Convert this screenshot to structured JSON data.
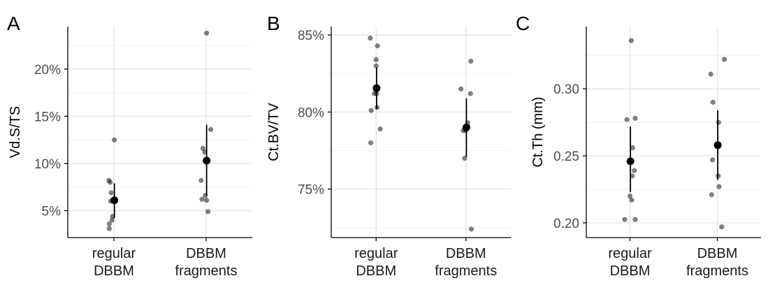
{
  "chart_data": [
    {
      "panel": "A",
      "type": "scatter",
      "ylabel": "Vd.S/TS",
      "categories": [
        "regular\nDBBM",
        "DBBM\nfragments"
      ],
      "ylim": [
        0.0215,
        0.245
      ],
      "yticks": [
        0.05,
        0.1,
        0.15,
        0.2
      ],
      "ytick_labels": [
        "5%",
        "10%",
        "15%",
        "20%"
      ],
      "ytick_minor": [
        0.075,
        0.125,
        0.175,
        0.225
      ],
      "points": [
        {
          "cat": 0,
          "jit": -0.1,
          "y": 0.031
        },
        {
          "cat": 0,
          "jit": -0.1,
          "y": 0.036
        },
        {
          "cat": 0,
          "jit": -0.04,
          "y": 0.04
        },
        {
          "cat": 0,
          "jit": -0.03,
          "y": 0.044
        },
        {
          "cat": 0,
          "jit": -0.07,
          "y": 0.06
        },
        {
          "cat": 0,
          "jit": -0.06,
          "y": 0.069
        },
        {
          "cat": 0,
          "jit": -0.08,
          "y": 0.08
        },
        {
          "cat": 0,
          "jit": -0.11,
          "y": 0.082
        },
        {
          "cat": 0,
          "jit": 0.01,
          "y": 0.125
        },
        {
          "cat": 1,
          "jit": 0.04,
          "y": 0.049
        },
        {
          "cat": 1,
          "jit": -0.09,
          "y": 0.062
        },
        {
          "cat": 1,
          "jit": 0.01,
          "y": 0.061
        },
        {
          "cat": 1,
          "jit": -0.02,
          "y": 0.066
        },
        {
          "cat": 1,
          "jit": -0.11,
          "y": 0.082
        },
        {
          "cat": 1,
          "jit": -0.03,
          "y": 0.112
        },
        {
          "cat": 1,
          "jit": -0.07,
          "y": 0.116
        },
        {
          "cat": 1,
          "jit": 0.1,
          "y": 0.136
        },
        {
          "cat": 1,
          "jit": 0.01,
          "y": 0.238
        }
      ],
      "summary": [
        {
          "cat": 0,
          "mean": 0.061,
          "low": 0.042,
          "high": 0.079
        },
        {
          "cat": 1,
          "mean": 0.103,
          "low": 0.066,
          "high": 0.141
        }
      ]
    },
    {
      "panel": "B",
      "type": "scatter",
      "ylabel": "Ct.BV/TV",
      "categories": [
        "regular\nDBBM",
        "DBBM\nfragments"
      ],
      "ylim": [
        0.7185,
        0.8555
      ],
      "yticks": [
        0.75,
        0.8,
        0.85
      ],
      "ytick_labels": [
        "75%",
        "80%",
        "85%"
      ],
      "ytick_minor": [
        0.725,
        0.775,
        0.825
      ],
      "points": [
        {
          "cat": 0,
          "jit": -0.12,
          "y": 0.78
        },
        {
          "cat": 0,
          "jit": 0.09,
          "y": 0.789
        },
        {
          "cat": 0,
          "jit": -0.11,
          "y": 0.801
        },
        {
          "cat": 0,
          "jit": 0.02,
          "y": 0.803
        },
        {
          "cat": 0,
          "jit": -0.04,
          "y": 0.812
        },
        {
          "cat": 0,
          "jit": 0.01,
          "y": 0.812
        },
        {
          "cat": 0,
          "jit": 0.0,
          "y": 0.83
        },
        {
          "cat": 0,
          "jit": 0.0,
          "y": 0.834
        },
        {
          "cat": 0,
          "jit": 0.03,
          "y": 0.843
        },
        {
          "cat": 0,
          "jit": -0.13,
          "y": 0.848
        },
        {
          "cat": 1,
          "jit": 0.12,
          "y": 0.724
        },
        {
          "cat": 1,
          "jit": -0.03,
          "y": 0.77
        },
        {
          "cat": 1,
          "jit": -0.06,
          "y": 0.788
        },
        {
          "cat": 1,
          "jit": -0.01,
          "y": 0.788
        },
        {
          "cat": 1,
          "jit": 0.04,
          "y": 0.793
        },
        {
          "cat": 1,
          "jit": 0.1,
          "y": 0.812
        },
        {
          "cat": 1,
          "jit": -0.11,
          "y": 0.815
        },
        {
          "cat": 1,
          "jit": 0.11,
          "y": 0.833
        }
      ],
      "summary": [
        {
          "cat": 0,
          "mean": 0.8155,
          "low": 0.802,
          "high": 0.829
        },
        {
          "cat": 1,
          "mean": 0.79,
          "low": 0.771,
          "high": 0.809
        }
      ]
    },
    {
      "panel": "C",
      "type": "scatter",
      "ylabel": "Ct.Th (mm)",
      "categories": [
        "regular\nDBBM",
        "DBBM\nfragments"
      ],
      "ylim": [
        0.189,
        0.3465
      ],
      "yticks": [
        0.2,
        0.25,
        0.3
      ],
      "ytick_labels": [
        "0.20",
        "0.25",
        "0.30"
      ],
      "ytick_minor": [
        0.225,
        0.275,
        0.325
      ],
      "points": [
        {
          "cat": 0,
          "jit": -0.12,
          "y": 0.2025
        },
        {
          "cat": 0,
          "jit": 0.12,
          "y": 0.2025
        },
        {
          "cat": 0,
          "jit": 0.04,
          "y": 0.217
        },
        {
          "cat": 0,
          "jit": 0.0,
          "y": 0.22
        },
        {
          "cat": 0,
          "jit": 0.05,
          "y": 0.235
        },
        {
          "cat": 0,
          "jit": 0.1,
          "y": 0.239
        },
        {
          "cat": 0,
          "jit": 0.06,
          "y": 0.256
        },
        {
          "cat": 0,
          "jit": -0.07,
          "y": 0.277
        },
        {
          "cat": 0,
          "jit": 0.12,
          "y": 0.278
        },
        {
          "cat": 0,
          "jit": 0.03,
          "y": 0.336
        },
        {
          "cat": 1,
          "jit": 0.1,
          "y": 0.197
        },
        {
          "cat": 1,
          "jit": -0.13,
          "y": 0.221
        },
        {
          "cat": 1,
          "jit": 0.04,
          "y": 0.227
        },
        {
          "cat": 1,
          "jit": 0.02,
          "y": 0.235
        },
        {
          "cat": 1,
          "jit": -0.11,
          "y": 0.247
        },
        {
          "cat": 1,
          "jit": 0.03,
          "y": 0.275
        },
        {
          "cat": 1,
          "jit": -0.1,
          "y": 0.29
        },
        {
          "cat": 1,
          "jit": -0.15,
          "y": 0.311
        },
        {
          "cat": 1,
          "jit": 0.16,
          "y": 0.322
        }
      ],
      "summary": [
        {
          "cat": 0,
          "mean": 0.246,
          "low": 0.223,
          "high": 0.272
        },
        {
          "cat": 1,
          "mean": 0.258,
          "low": 0.232,
          "high": 0.284
        }
      ]
    }
  ]
}
